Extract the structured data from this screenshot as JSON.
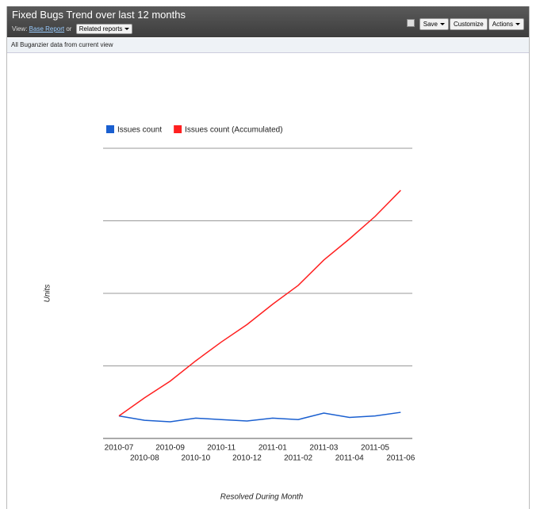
{
  "header": {
    "title": "Fixed Bugs Trend over last 12 months",
    "view_label": "View:",
    "base_report": "Base Report",
    "or": "or",
    "related_reports": "Related reports",
    "buttons": [
      "Save",
      "Customize",
      "Actions"
    ]
  },
  "subheader": "All Buganzier data from current view",
  "chart_data": {
    "type": "line",
    "categories": [
      "2010-07",
      "2010-08",
      "2010-09",
      "2010-10",
      "2010-11",
      "2010-12",
      "2011-01",
      "2011-02",
      "2011-03",
      "2011-04",
      "2011-05",
      "2011-06"
    ],
    "series": [
      {
        "name": "Issues count",
        "color": "#1a5fd0",
        "values": [
          31,
          25,
          23,
          28,
          26,
          24,
          28,
          26,
          35,
          29,
          31,
          36
        ]
      },
      {
        "name": "Issues count (Accumulated)",
        "color": "#ff2020",
        "values": [
          31,
          56,
          79,
          107,
          133,
          157,
          185,
          211,
          246,
          275,
          306,
          342
        ]
      }
    ],
    "xlabel": "Resolved During Month",
    "ylabel": "Units",
    "ylim": [
      0,
      400
    ],
    "yticks": [
      0,
      100,
      200,
      300,
      400
    ],
    "grid": true
  }
}
